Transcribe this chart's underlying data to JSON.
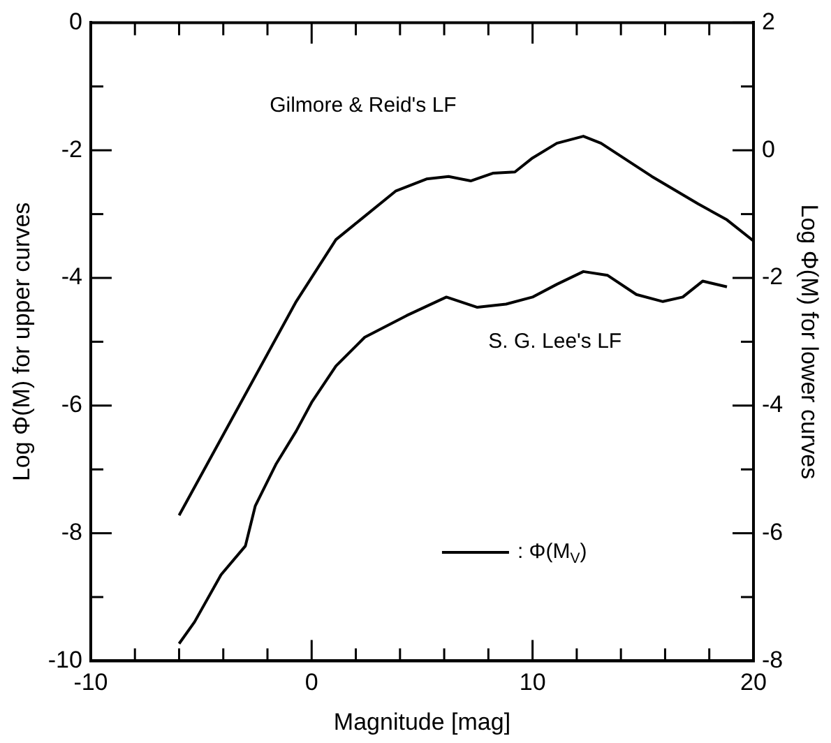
{
  "chart_data": {
    "type": "line",
    "xlabel": "Magnitude [mag]",
    "ylabel": "Log Φ(M) for upper curves",
    "y2label": "Log Φ(M) for lower curves",
    "xlim": [
      -10,
      20
    ],
    "xticks": [
      -10,
      {
        "value": -8,
        "label": null
      },
      {
        "value": -6,
        "label": null
      },
      {
        "value": -4,
        "label": null
      },
      {
        "value": -2,
        "label": null
      },
      0,
      {
        "value": 2,
        "label": null
      },
      {
        "value": 4,
        "label": null
      },
      {
        "value": 6,
        "label": null
      },
      {
        "value": 8,
        "label": null
      },
      10,
      {
        "value": 12,
        "label": null
      },
      {
        "value": 14,
        "label": null
      },
      {
        "value": 16,
        "label": null
      },
      {
        "value": 18,
        "label": null
      },
      20
    ],
    "ylim": [
      -10,
      0
    ],
    "yticks": [
      -10,
      {
        "value": -9,
        "label": null
      },
      -8,
      {
        "value": -7,
        "label": null
      },
      -6,
      {
        "value": -5,
        "label": null
      },
      -4,
      {
        "value": -3,
        "label": null
      },
      -2,
      {
        "value": -1,
        "label": null
      },
      0
    ],
    "y2lim": [
      -8,
      2
    ],
    "y2ticks": [
      -8,
      {
        "value": -7,
        "label": null
      },
      -6,
      {
        "value": -5,
        "label": null
      },
      -4,
      {
        "value": -3,
        "label": null
      },
      -2,
      {
        "value": -1,
        "label": null
      },
      0,
      {
        "value": 1,
        "label": null
      },
      2
    ],
    "legend": "bottom right",
    "annotations": [
      "Gilmore & Reid's LF",
      "S. G. Lee's LF"
    ],
    "series": [
      {
        "name": ": Φ(M$_{V}$)",
        "color": "#000000",
        "x": [
          -6,
          -3.2,
          -0.7,
          1.1,
          2.2,
          3.8,
          5.2,
          6.2,
          7.2,
          8.2,
          9.2,
          10,
          11.1,
          12.3,
          13.1,
          15.4,
          17.5,
          18.8,
          20
        ],
        "values": [
          -7.72,
          -5.95,
          -4.37,
          -3.4,
          -3.09,
          -2.64,
          -2.45,
          -2.41,
          -2.48,
          -2.36,
          -2.34,
          -2.12,
          -1.89,
          -1.78,
          -1.89,
          -2.41,
          -2.84,
          -3.09,
          -3.42
        ]
      },
      {
        "color": "#000000",
        "axis": "y2",
        "x": [
          -6,
          -5.3,
          -4.1,
          -3,
          -2.55,
          -1.6,
          -0.7,
          0,
          1.1,
          2.4,
          4.3,
          6.1,
          7.5,
          8.8,
          10,
          11.1,
          12.3,
          13.4,
          14.7,
          15.9,
          16.8,
          17.7,
          18.8
        ],
        "values": [
          -7.73,
          -7.39,
          -6.65,
          -6.2,
          -5.57,
          -4.91,
          -4.4,
          -3.95,
          -3.38,
          -2.93,
          -2.59,
          -2.3,
          -2.46,
          -2.41,
          -2.3,
          -2.1,
          -1.9,
          -1.96,
          -2.26,
          -2.37,
          -2.3,
          -2.05,
          -2.14
        ]
      }
    ]
  }
}
